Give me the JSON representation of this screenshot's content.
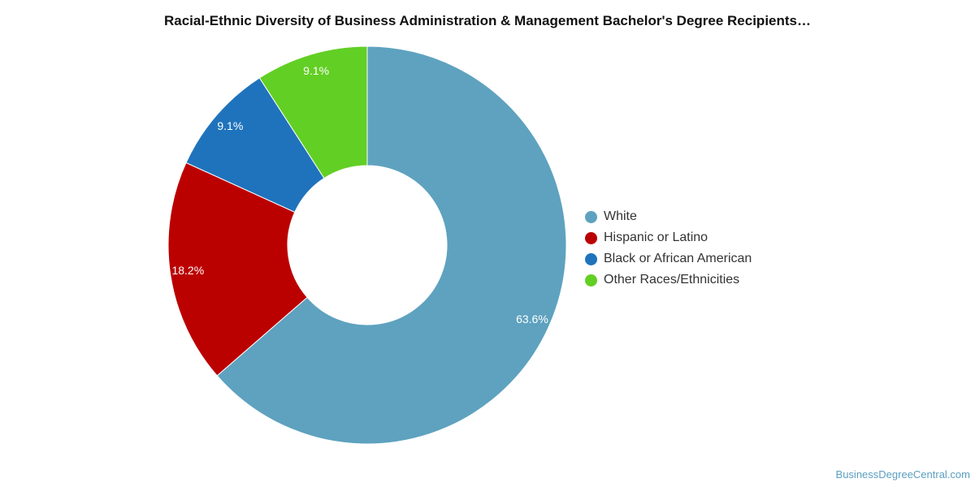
{
  "chart_data": {
    "type": "pie",
    "title": "Racial-Ethnic Diversity of Business Administration & Management Bachelor's Degree Recipients…",
    "categories": [
      "White",
      "Hispanic or Latino",
      "Black or African American",
      "Other Races/Ethnicities"
    ],
    "values": [
      63.6,
      18.2,
      9.1,
      9.1
    ],
    "labels": [
      "63.6%",
      "18.2%",
      "9.1%",
      "9.1%"
    ],
    "colors": [
      "#5ea2bf",
      "#bb0000",
      "#1f73bc",
      "#62cf24"
    ],
    "donut": true,
    "legend_position": "right"
  },
  "watermark": "BusinessDegreeCentral.com"
}
